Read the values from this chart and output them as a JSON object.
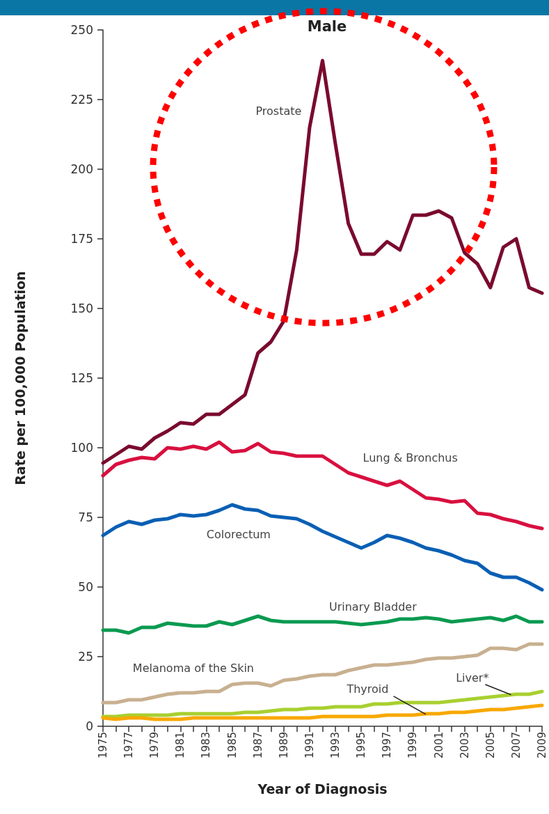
{
  "chart_data": {
    "type": "line",
    "title": "Male",
    "xlabel": "Year of Diagnosis",
    "ylabel": "Rate per 100,000 Population",
    "x": [
      1975,
      1976,
      1977,
      1978,
      1979,
      1980,
      1981,
      1982,
      1983,
      1984,
      1985,
      1986,
      1987,
      1988,
      1989,
      1990,
      1991,
      1992,
      1993,
      1994,
      1995,
      1996,
      1997,
      1998,
      1999,
      2000,
      2001,
      2002,
      2003,
      2004,
      2005,
      2006,
      2007,
      2008,
      2009
    ],
    "xlim": [
      1975,
      2009
    ],
    "xticks": [
      1975,
      {
        "value": 1976,
        "label": null
      },
      1977,
      {
        "value": 1978,
        "label": null
      },
      1979,
      {
        "value": 1980,
        "label": null
      },
      1981,
      {
        "value": 1982,
        "label": null
      },
      1983,
      {
        "value": 1984,
        "label": null
      },
      1985,
      {
        "value": 1986,
        "label": null
      },
      1987,
      {
        "value": 1988,
        "label": null
      },
      1989,
      {
        "value": 1990,
        "label": null
      },
      1991,
      {
        "value": 1992,
        "label": null
      },
      1993,
      {
        "value": 1994,
        "label": null
      },
      1995,
      {
        "value": 1996,
        "label": null
      },
      1997,
      {
        "value": 1998,
        "label": null
      },
      1999,
      {
        "value": 2000,
        "label": null
      },
      2001,
      {
        "value": 2002,
        "label": null
      },
      2003,
      {
        "value": 2004,
        "label": null
      },
      2005,
      {
        "value": 2006,
        "label": null
      },
      2007,
      {
        "value": 2008,
        "label": null
      },
      2009
    ],
    "ylim": [
      0,
      250
    ],
    "yticks": [
      0,
      25,
      50,
      75,
      100,
      125,
      150,
      175,
      200,
      225,
      250
    ],
    "grid": false,
    "legend": false,
    "marker": "none",
    "line_style": "solid",
    "series": [
      {
        "name": "Prostate",
        "color": "#7a0a2e",
        "values": [
          94.5,
          97.5,
          100.5,
          99.5,
          103.5,
          106,
          109,
          108.5,
          112,
          112,
          115.5,
          119,
          134,
          138,
          145.5,
          171,
          215,
          239,
          209,
          180.5,
          169.5,
          169.5,
          174,
          171,
          183.5,
          183.5,
          185,
          182.5,
          170,
          166,
          157.5,
          172,
          175,
          157.5,
          155.5
        ]
      },
      {
        "name": "Lung & Bronchus",
        "color": "#d8103f",
        "values": [
          90,
          94,
          95.5,
          96.5,
          96,
          100,
          99.5,
          100.5,
          99.5,
          102,
          98.5,
          99,
          101.5,
          98.5,
          98,
          97,
          97,
          97,
          94,
          91,
          89.5,
          88,
          86.5,
          88,
          85,
          82,
          81.5,
          80.5,
          81,
          76.5,
          76,
          74.5,
          73.5,
          72,
          71
        ]
      },
      {
        "name": "Colorectum",
        "color": "#0a5fb4",
        "values": [
          68.5,
          71.5,
          73.5,
          72.5,
          74,
          74.5,
          76,
          75.5,
          76,
          77.5,
          79.5,
          78,
          77.5,
          75.5,
          75,
          74.5,
          72.5,
          70,
          68,
          66,
          64,
          66,
          68.5,
          67.5,
          66,
          64,
          63,
          61.5,
          59.5,
          58.5,
          55,
          53.5,
          53.5,
          51.5,
          49
        ]
      },
      {
        "name": "Urinary Bladder",
        "color": "#0a9a50",
        "values": [
          34.5,
          34.5,
          33.5,
          35.5,
          35.5,
          37,
          36.5,
          36,
          36,
          37.5,
          36.5,
          38,
          39.5,
          38,
          37.5,
          37.5,
          37.5,
          37.5,
          37.5,
          37,
          36.5,
          37,
          37.5,
          38.5,
          38.5,
          39,
          38.5,
          37.5,
          38,
          38.5,
          39,
          38,
          39.5,
          37.5,
          37.5
        ]
      },
      {
        "name": "Melanoma of the Skin",
        "color": "#c8b090",
        "values": [
          8.5,
          8.5,
          9.5,
          9.5,
          10.5,
          11.5,
          12,
          12,
          12.5,
          12.5,
          15,
          15.5,
          15.5,
          14.5,
          16.5,
          17,
          18,
          18.5,
          18.5,
          20,
          21,
          22,
          22,
          22.5,
          23,
          24,
          24.5,
          24.5,
          25,
          25.5,
          28,
          28,
          27.5,
          29.5,
          29.5
        ]
      },
      {
        "name": "Liver*",
        "color": "#a8d030",
        "values": [
          3.5,
          3.5,
          4,
          4,
          4,
          4,
          4.5,
          4.5,
          4.5,
          4.5,
          4.5,
          5,
          5,
          5.5,
          6,
          6,
          6.5,
          6.5,
          7,
          7,
          7,
          8,
          8,
          8.5,
          8.5,
          8.5,
          8.5,
          9,
          9.5,
          10,
          10.5,
          11,
          11.5,
          11.5,
          12.5
        ]
      },
      {
        "name": "Thyroid",
        "color": "#f8a800",
        "values": [
          3,
          2.5,
          3,
          3,
          2.5,
          2.5,
          2.5,
          3,
          3,
          3,
          3,
          3,
          3,
          3,
          3,
          3,
          3,
          3.5,
          3.5,
          3.5,
          3.5,
          3.5,
          4,
          4,
          4,
          4.5,
          4.5,
          5,
          5,
          5.5,
          6,
          6,
          6.5,
          7,
          7.5
        ]
      }
    ]
  }
}
